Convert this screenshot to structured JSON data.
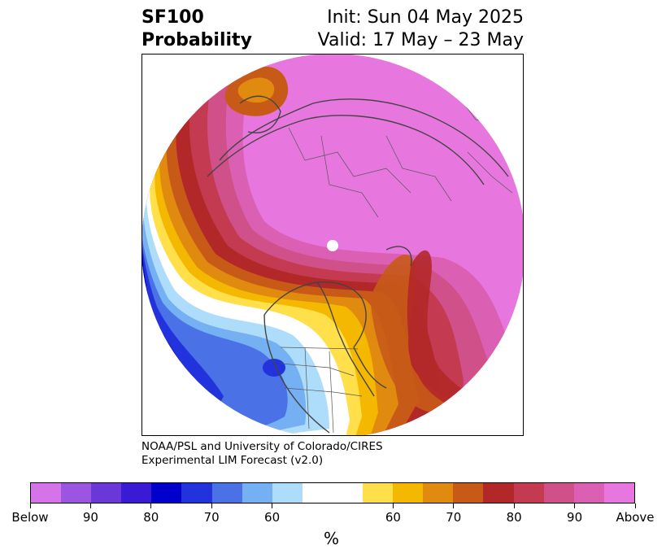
{
  "title": {
    "left_line1": "SF100",
    "left_line2": "Probability",
    "right_line1": "Init: Sun 04 May 2025",
    "right_line2": "Valid: 17 May – 23 May"
  },
  "credit": {
    "line1": "NOAA/PSL and University of Colorado/CIRES",
    "line2": "Experimental LIM Forecast (v2.0)"
  },
  "colorbar": {
    "unit": "%",
    "colors": [
      "#d474e8",
      "#9b55e0",
      "#6a38d8",
      "#3b1ad6",
      "#0000cc",
      "#2233dd",
      "#4a72e6",
      "#74b0f2",
      "#aedcfb",
      "#ffffff",
      "#ffffff",
      "#ffe04a",
      "#f5b800",
      "#e08a10",
      "#c85a18",
      "#b22828",
      "#c43a50",
      "#d0508a",
      "#db60b4",
      "#e777df"
    ],
    "tick_labels": [
      "Below",
      "90",
      "80",
      "70",
      "60",
      "60",
      "70",
      "80",
      "90",
      "Above"
    ]
  },
  "map": {
    "projection": "north-polar-stereographic",
    "pole_marker": "white-dot"
  }
}
